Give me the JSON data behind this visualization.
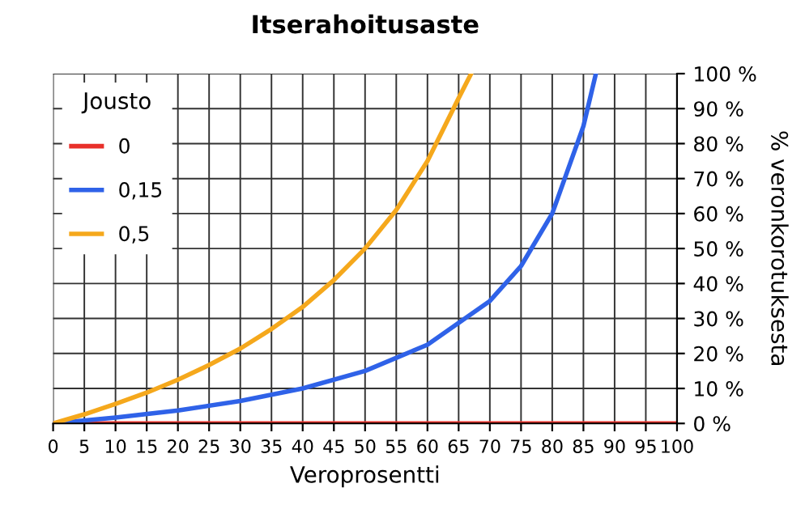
{
  "chart_data": {
    "type": "line",
    "title": "Itserahoitusaste",
    "xlabel": "Veroprosentti",
    "ylabel": "% veronkorotuksesta",
    "legend_title": "Jousto",
    "legend": "top left",
    "grid": true,
    "x": [
      0,
      5,
      10,
      15,
      20,
      25,
      30,
      35,
      40,
      45,
      50,
      55,
      60,
      65,
      67
    ],
    "series": [
      {
        "name": "0",
        "color": "#e8302a",
        "x": [
          0,
          100
        ],
        "values": [
          0,
          0
        ]
      },
      {
        "name": "0,15",
        "color": "#2f62e8",
        "x": [
          0,
          10,
          20,
          30,
          40,
          50,
          60,
          70,
          75,
          80,
          85,
          87
        ],
        "values": [
          0,
          0.017,
          0.037,
          0.064,
          0.1,
          0.15,
          0.225,
          0.35,
          0.45,
          0.6,
          0.85,
          1.0
        ]
      },
      {
        "name": "0,5",
        "color": "#f5a81c",
        "values": [
          0,
          0.026,
          0.056,
          0.088,
          0.125,
          0.167,
          0.214,
          0.27,
          0.333,
          0.41,
          0.5,
          0.61,
          0.75,
          0.93,
          1.0
        ]
      }
    ],
    "xlim": [
      0,
      100
    ],
    "xticks": [
      0,
      5,
      10,
      15,
      20,
      25,
      30,
      35,
      40,
      45,
      50,
      55,
      60,
      65,
      70,
      75,
      80,
      85,
      90,
      95,
      100
    ],
    "ylim": [
      0,
      1
    ],
    "yticks": [
      {
        "value": 0,
        "label": "0 %"
      },
      {
        "value": 0.1,
        "label": "10 %"
      },
      {
        "value": 0.2,
        "label": "20 %"
      },
      {
        "value": 0.3,
        "label": "30 %"
      },
      {
        "value": 0.4,
        "label": "40 %"
      },
      {
        "value": 0.5,
        "label": "50 %"
      },
      {
        "value": 0.6,
        "label": "60 %"
      },
      {
        "value": 0.7,
        "label": "70 %"
      },
      {
        "value": 0.8,
        "label": "80 %"
      },
      {
        "value": 0.9,
        "label": "90 %"
      },
      {
        "value": 1.0,
        "label": "100 %"
      }
    ]
  }
}
